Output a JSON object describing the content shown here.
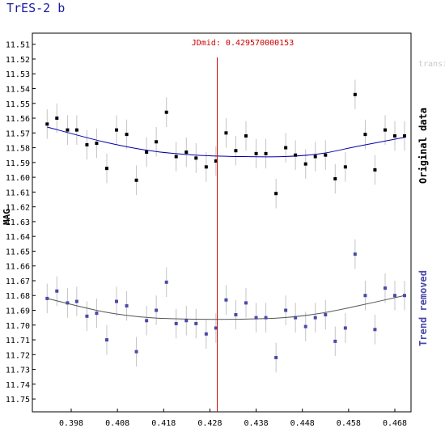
{
  "chart_data": {
    "type": "scatter",
    "title": "TrES-2 b",
    "faint_label": "transi",
    "ylabel": "MAG",
    "xlim": [
      0.3896,
      0.4715
    ],
    "ylim": [
      11.5025,
      11.7587
    ],
    "x_ticks": [
      0.398,
      0.408,
      0.418,
      0.428,
      0.438,
      0.448,
      0.458,
      0.468
    ],
    "x_tick_labels": [
      "0.398",
      "0.408",
      "0.418",
      "0.428",
      "0.438",
      "0.448",
      "0.458",
      "0.468"
    ],
    "y_ticks": [
      11.51,
      11.52,
      11.53,
      11.54,
      11.55,
      11.56,
      11.57,
      11.58,
      11.59,
      11.6,
      11.61,
      11.62,
      11.63,
      11.64,
      11.65,
      11.66,
      11.67,
      11.68,
      11.69,
      11.7,
      11.71,
      11.72,
      11.73,
      11.74,
      11.75
    ],
    "y_tick_labels": [
      "11.51",
      "11.52",
      "11.53",
      "11.54",
      "11.55",
      "11.56",
      "11.57",
      "11.58",
      "11.59",
      "11.60",
      "11.61",
      "11.62",
      "11.63",
      "11.64",
      "11.65",
      "11.66",
      "11.67",
      "11.68",
      "11.69",
      "11.70",
      "11.71",
      "11.72",
      "11.73",
      "11.74",
      "11.75"
    ],
    "marker": {
      "x": 0.4296,
      "label": "JDmid: 0.429570000153",
      "color": "#cc0000"
    },
    "x": [
      0.3928,
      0.3949,
      0.3972,
      0.3992,
      0.4014,
      0.4035,
      0.4057,
      0.4078,
      0.41,
      0.4121,
      0.4143,
      0.4164,
      0.4186,
      0.4207,
      0.4229,
      0.425,
      0.4272,
      0.4293,
      0.4315,
      0.4336,
      0.4358,
      0.438,
      0.4401,
      0.4423,
      0.4444,
      0.4465,
      0.4487,
      0.4508,
      0.453,
      0.4551,
      0.4573,
      0.4594,
      0.4616,
      0.4637,
      0.4659,
      0.468,
      0.4701
    ],
    "series": [
      {
        "name": "Original data",
        "color": "#000000",
        "trend_color": "#0000aa",
        "y": [
          11.564,
          11.56,
          11.568,
          11.568,
          11.578,
          11.577,
          11.594,
          11.568,
          11.571,
          11.602,
          11.583,
          11.576,
          11.556,
          11.586,
          11.583,
          11.587,
          11.593,
          11.589,
          11.57,
          11.582,
          11.572,
          11.584,
          11.584,
          11.611,
          11.58,
          11.585,
          11.591,
          11.586,
          11.585,
          11.601,
          11.593,
          11.544,
          11.571,
          11.595,
          11.568,
          11.572,
          11.572
        ],
        "err": [
          0.01,
          0.01,
          0.01,
          0.01,
          0.01,
          0.01,
          0.01,
          0.01,
          0.01,
          0.01,
          0.01,
          0.01,
          0.01,
          0.01,
          0.01,
          0.01,
          0.01,
          0.01,
          0.01,
          0.01,
          0.01,
          0.01,
          0.01,
          0.01,
          0.01,
          0.01,
          0.01,
          0.01,
          0.01,
          0.01,
          0.01,
          0.01,
          0.01,
          0.01,
          0.01,
          0.01,
          0.01
        ],
        "trend": {
          "x": [
            0.3928,
            0.405,
            0.415,
            0.425,
            0.435,
            0.444,
            0.452,
            0.46,
            0.4701
          ],
          "y": [
            11.566,
            11.576,
            11.582,
            11.585,
            11.586,
            11.586,
            11.584,
            11.579,
            11.573
          ]
        }
      },
      {
        "name": "Trend removed",
        "color": "#4a4aa8",
        "trend_color": "#555555",
        "y": [
          11.682,
          11.677,
          11.685,
          11.684,
          11.694,
          11.692,
          11.71,
          11.684,
          11.687,
          11.718,
          11.697,
          11.69,
          11.671,
          11.699,
          11.697,
          11.699,
          11.706,
          11.702,
          11.683,
          11.693,
          11.685,
          11.695,
          11.695,
          11.722,
          11.69,
          11.695,
          11.701,
          11.695,
          11.693,
          11.711,
          11.702,
          11.652,
          11.68,
          11.703,
          11.675,
          11.68,
          11.68
        ],
        "err": [
          0.01,
          0.01,
          0.01,
          0.01,
          0.01,
          0.01,
          0.01,
          0.01,
          0.01,
          0.01,
          0.01,
          0.01,
          0.01,
          0.01,
          0.01,
          0.01,
          0.01,
          0.01,
          0.01,
          0.01,
          0.01,
          0.01,
          0.01,
          0.01,
          0.01,
          0.01,
          0.01,
          0.01,
          0.01,
          0.01,
          0.01,
          0.01,
          0.01,
          0.01,
          0.01,
          0.01,
          0.01
        ],
        "trend": {
          "x": [
            0.3928,
            0.405,
            0.415,
            0.425,
            0.435,
            0.444,
            0.452,
            0.46,
            0.4701
          ],
          "y": [
            11.682,
            11.691,
            11.695,
            11.696,
            11.696,
            11.695,
            11.692,
            11.687,
            11.68
          ]
        }
      }
    ],
    "grid": false,
    "legend": "right side, rotated labels"
  }
}
